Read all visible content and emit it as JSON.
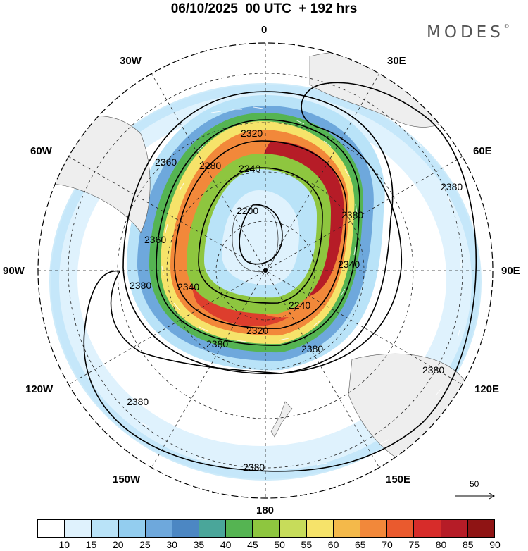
{
  "title": "06/10/2025  00 UTC  + 192 hrs",
  "brand": {
    "name": "MODES",
    "symbol": "©"
  },
  "longitude_labels": {
    "n0": "0",
    "e30": "30E",
    "e60": "60E",
    "e90": "90E",
    "e120": "120E",
    "e150": "150E",
    "s180": "180",
    "w150": "150W",
    "w120": "120W",
    "w90": "90W",
    "w60": "60W",
    "w30": "30W"
  },
  "contour_labels": [
    "2200",
    "2240",
    "2280",
    "2320",
    "2340",
    "2360",
    "2380"
  ],
  "colorbar": {
    "colors": [
      "#ffffff",
      "#dff2fd",
      "#b9e3f8",
      "#93cdef",
      "#6ea8dc",
      "#4c87c3",
      "#4aa69a",
      "#55b452",
      "#8ec63f",
      "#c7dc5a",
      "#f6e36a",
      "#f4b94a",
      "#f2883a",
      "#ea5a2e",
      "#d72c2a",
      "#b61c27",
      "#8f1414"
    ],
    "tick_labels": [
      "10",
      "15",
      "20",
      "25",
      "30",
      "35",
      "40",
      "45",
      "50",
      "55",
      "60",
      "65",
      "70",
      "75",
      "80",
      "85",
      "90"
    ]
  },
  "reference_vector": {
    "label": "50"
  }
}
